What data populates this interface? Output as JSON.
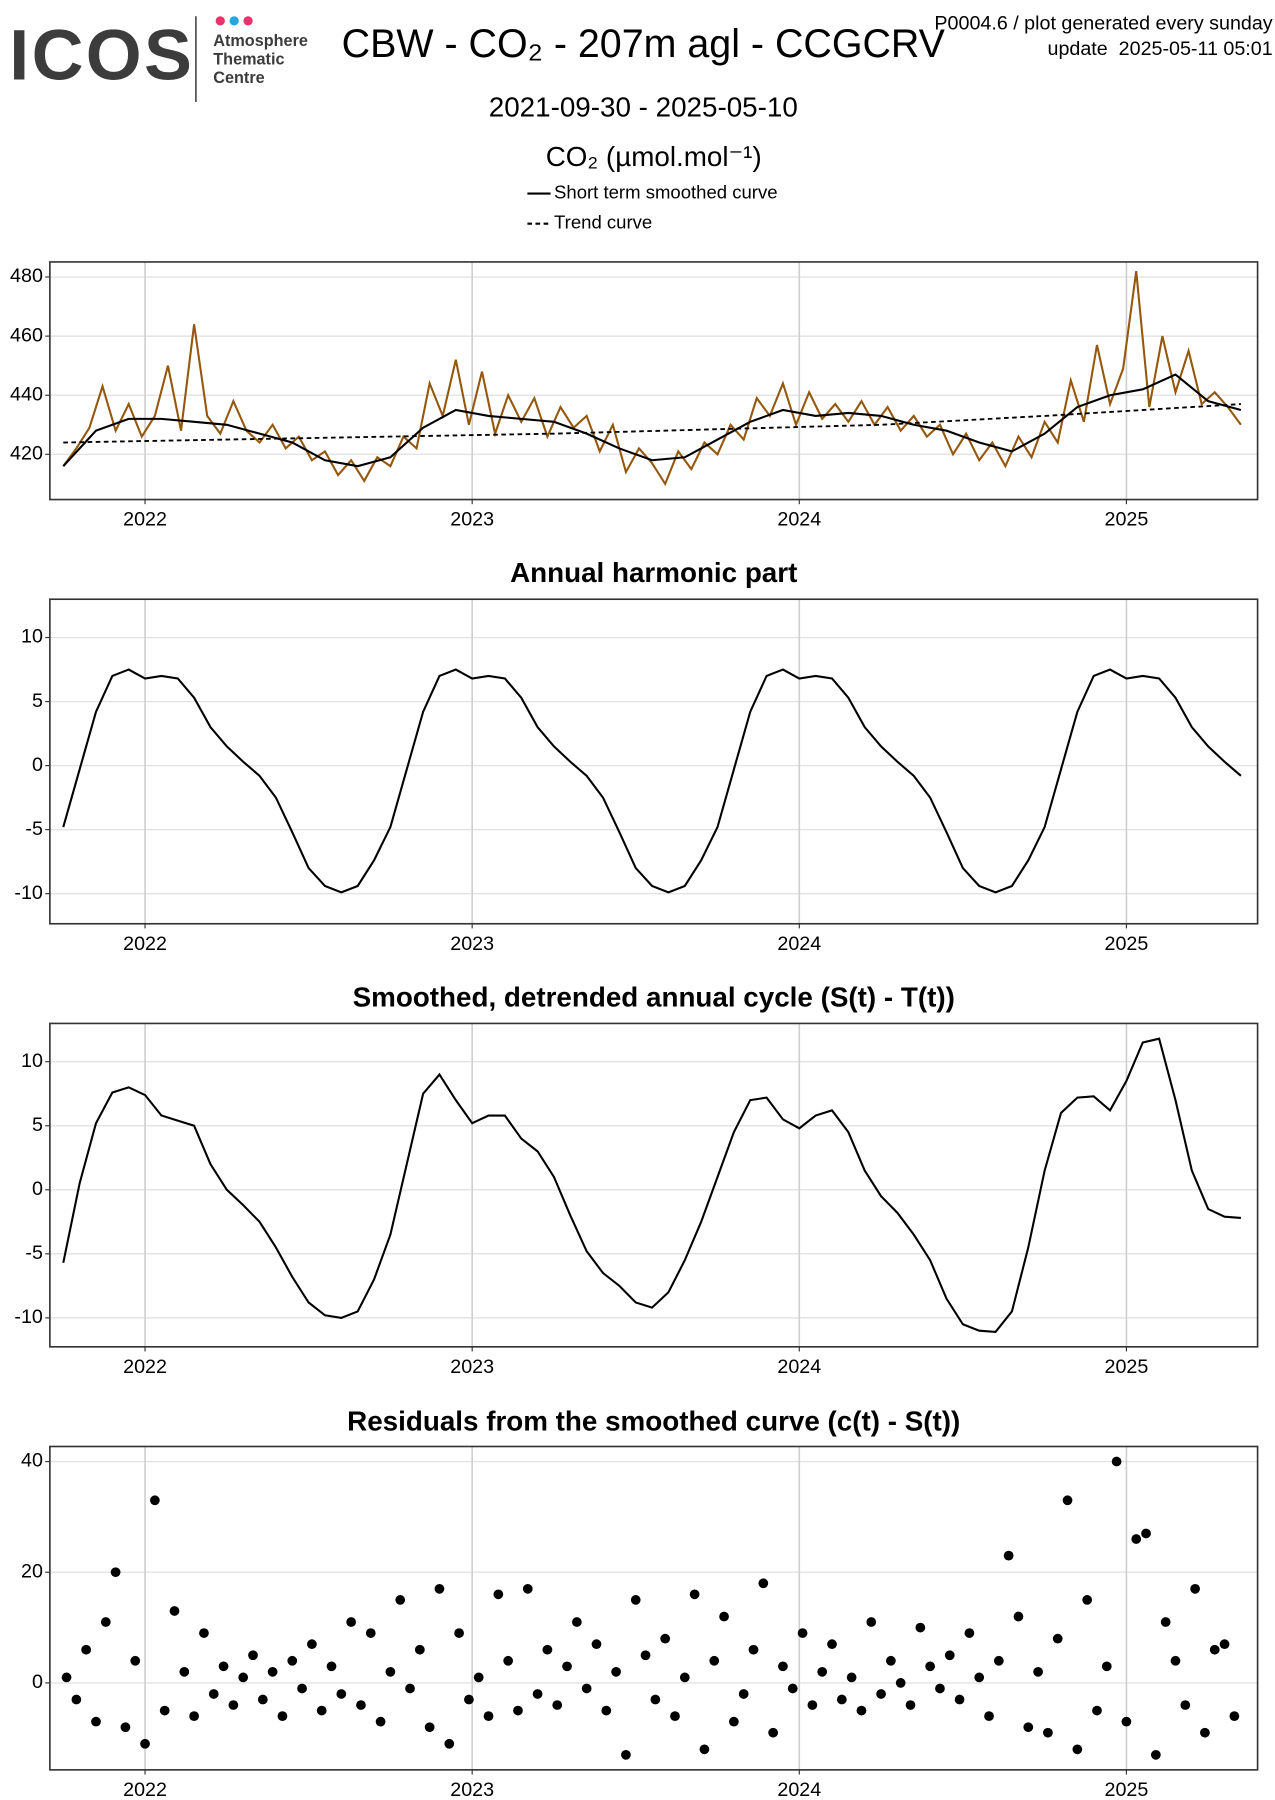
{
  "header": {
    "logo": "ICOS",
    "logo_subtitle": [
      "Atmosphere",
      "Thematic",
      "Centre"
    ],
    "title": "CBW - CO₂ - 207m agl - CCGCRV",
    "subtitle": "2021-09-30 - 2025-05-10",
    "note": "P0004.6 / plot generated every sunday",
    "update": "update  2025-05-11 05:01"
  },
  "chart_data": [
    {
      "type": "line",
      "title": "CO₂ (µmol.mol⁻¹)",
      "legend": "top",
      "grid": true,
      "xlim": [
        2021.709,
        2025.401
      ],
      "xticks": [
        2022,
        2023,
        2024,
        2025
      ],
      "ylim": [
        404.7,
        485.1
      ],
      "yticks": [
        420,
        440,
        460,
        480
      ],
      "series": [
        {
          "color": "#94570c",
          "x": [
            2021.75,
            2021.79,
            2021.83,
            2021.87,
            2021.91,
            2021.95,
            2021.99,
            2022.03,
            2022.07,
            2022.11,
            2022.15,
            2022.19,
            2022.23,
            2022.27,
            2022.31,
            2022.35,
            2022.39,
            2022.43,
            2022.47,
            2022.51,
            2022.55,
            2022.59,
            2022.63,
            2022.67,
            2022.71,
            2022.75,
            2022.79,
            2022.83,
            2022.87,
            2022.91,
            2022.95,
            2022.99,
            2023.03,
            2023.07,
            2023.11,
            2023.15,
            2023.19,
            2023.23,
            2023.27,
            2023.31,
            2023.35,
            2023.39,
            2023.43,
            2023.47,
            2023.51,
            2023.55,
            2023.59,
            2023.63,
            2023.67,
            2023.71,
            2023.75,
            2023.79,
            2023.83,
            2023.87,
            2023.91,
            2023.95,
            2023.99,
            2024.03,
            2024.07,
            2024.11,
            2024.15,
            2024.19,
            2024.23,
            2024.27,
            2024.31,
            2024.35,
            2024.39,
            2024.43,
            2024.47,
            2024.51,
            2024.55,
            2024.59,
            2024.63,
            2024.67,
            2024.71,
            2024.75,
            2024.79,
            2024.83,
            2024.87,
            2024.91,
            2024.95,
            2024.99,
            2025.03,
            2025.07,
            2025.11,
            2025.15,
            2025.19,
            2025.23,
            2025.27,
            2025.31,
            2025.35
          ],
          "values": [
            416,
            422,
            429,
            443,
            428,
            437,
            426,
            433,
            450,
            428,
            464,
            433,
            427,
            438,
            428,
            424,
            430,
            422,
            426,
            418,
            421,
            413,
            418,
            411,
            419,
            416,
            426,
            422,
            444,
            433,
            452,
            430,
            448,
            427,
            440,
            431,
            439,
            426,
            436,
            429,
            433,
            421,
            430,
            414,
            422,
            417,
            410,
            421,
            415,
            424,
            420,
            430,
            425,
            439,
            433,
            444,
            430,
            441,
            432,
            437,
            431,
            438,
            430,
            436,
            428,
            433,
            426,
            430,
            420,
            427,
            418,
            424,
            416,
            426,
            419,
            431,
            424,
            445,
            431,
            457,
            437,
            449,
            482,
            436,
            460,
            441,
            455,
            437,
            441,
            436,
            430
          ]
        },
        {
          "name": "Short term smoothed curve",
          "color": "#000000",
          "x": [
            2021.75,
            2021.85,
            2021.95,
            2022.05,
            2022.15,
            2022.25,
            2022.35,
            2022.45,
            2022.55,
            2022.65,
            2022.75,
            2022.85,
            2022.95,
            2023.05,
            2023.15,
            2023.25,
            2023.35,
            2023.45,
            2023.55,
            2023.65,
            2023.75,
            2023.85,
            2023.95,
            2024.05,
            2024.15,
            2024.25,
            2024.35,
            2024.45,
            2024.55,
            2024.65,
            2024.75,
            2024.85,
            2024.95,
            2025.05,
            2025.15,
            2025.25,
            2025.35
          ],
          "values": [
            416,
            428,
            432,
            432,
            431,
            430,
            427,
            424,
            418,
            416,
            419,
            429,
            435,
            433,
            432,
            431,
            427,
            422,
            418,
            419,
            425,
            431,
            435,
            433,
            434,
            433,
            430,
            428,
            424,
            421,
            427,
            436,
            440,
            442,
            447,
            438,
            435
          ]
        },
        {
          "name": "Trend curve",
          "color": "#000000",
          "dashed": true,
          "x": [
            2021.75,
            2022.25,
            2022.75,
            2023.25,
            2023.75,
            2024.25,
            2024.75,
            2025.35
          ],
          "values": [
            424,
            425,
            426,
            427,
            428.5,
            430,
            433,
            437
          ]
        }
      ]
    },
    {
      "type": "line",
      "title": "Annual harmonic part",
      "grid": true,
      "xlim": [
        2021.709,
        2025.401
      ],
      "xticks": [
        2022,
        2023,
        2024,
        2025
      ],
      "ylim": [
        -12.35,
        12.99
      ],
      "yticks": [
        -10,
        -5,
        0,
        5,
        10
      ],
      "series": [
        {
          "color": "#000000",
          "x": [
            2021.75,
            2021.8,
            2021.85,
            2021.9,
            2021.95,
            2022.0,
            2022.05,
            2022.1,
            2022.15,
            2022.2,
            2022.25,
            2022.3,
            2022.35,
            2022.4,
            2022.45,
            2022.5,
            2022.55,
            2022.6,
            2022.65,
            2022.7,
            2022.75,
            2022.8,
            2022.85,
            2022.9,
            2022.95,
            2023.0,
            2023.05,
            2023.1,
            2023.15,
            2023.2,
            2023.25,
            2023.3,
            2023.35,
            2023.4,
            2023.45,
            2023.5,
            2023.55,
            2023.6,
            2023.65,
            2023.7,
            2023.75,
            2023.8,
            2023.85,
            2023.9,
            2023.95,
            2024.0,
            2024.05,
            2024.1,
            2024.15,
            2024.2,
            2024.25,
            2024.3,
            2024.35,
            2024.4,
            2024.45,
            2024.5,
            2024.55,
            2024.6,
            2024.65,
            2024.7,
            2024.75,
            2024.8,
            2024.85,
            2024.9,
            2024.95,
            2025.0,
            2025.05,
            2025.1,
            2025.15,
            2025.2,
            2025.25,
            2025.3,
            2025.35
          ],
          "values": [
            -4.8,
            -0.3,
            4.2,
            7.0,
            7.5,
            6.8,
            7.0,
            6.8,
            5.3,
            3.0,
            1.5,
            0.3,
            -0.8,
            -2.5,
            -5.2,
            -8.0,
            -9.4,
            -9.9,
            -9.4,
            -7.4,
            -4.8,
            -0.3,
            4.2,
            7.0,
            7.5,
            6.8,
            7.0,
            6.8,
            5.3,
            3.0,
            1.5,
            0.3,
            -0.8,
            -2.5,
            -5.2,
            -8.0,
            -9.4,
            -9.9,
            -9.4,
            -7.4,
            -4.8,
            -0.3,
            4.2,
            7.0,
            7.5,
            6.8,
            7.0,
            6.8,
            5.3,
            3.0,
            1.5,
            0.3,
            -0.8,
            -2.5,
            -5.2,
            -8.0,
            -9.4,
            -9.9,
            -9.4,
            -7.4,
            -4.8,
            -0.3,
            4.2,
            7.0,
            7.5,
            6.8,
            7.0,
            6.8,
            5.3,
            3.0,
            1.5,
            0.3,
            -0.8
          ]
        }
      ]
    },
    {
      "type": "line",
      "title": "Smoothed, detrended annual cycle (S(t) - T(t))",
      "grid": true,
      "xlim": [
        2021.709,
        2025.401
      ],
      "xticks": [
        2022,
        2023,
        2024,
        2025
      ],
      "ylim": [
        -12.26,
        12.99
      ],
      "yticks": [
        -10,
        -5,
        0,
        5,
        10
      ],
      "series": [
        {
          "color": "#000000",
          "x": [
            2021.75,
            2021.8,
            2021.85,
            2021.9,
            2021.95,
            2022.0,
            2022.05,
            2022.1,
            2022.15,
            2022.2,
            2022.25,
            2022.3,
            2022.35,
            2022.4,
            2022.45,
            2022.5,
            2022.55,
            2022.6,
            2022.65,
            2022.7,
            2022.75,
            2022.8,
            2022.85,
            2022.9,
            2022.95,
            2023.0,
            2023.05,
            2023.1,
            2023.15,
            2023.2,
            2023.25,
            2023.3,
            2023.35,
            2023.4,
            2023.45,
            2023.5,
            2023.55,
            2023.6,
            2023.65,
            2023.7,
            2023.75,
            2023.8,
            2023.85,
            2023.9,
            2023.95,
            2024.0,
            2024.05,
            2024.1,
            2024.15,
            2024.2,
            2024.25,
            2024.3,
            2024.35,
            2024.4,
            2024.45,
            2024.5,
            2024.55,
            2024.6,
            2024.65,
            2024.7,
            2024.75,
            2024.8,
            2024.85,
            2024.9,
            2024.95,
            2025.0,
            2025.05,
            2025.1,
            2025.15,
            2025.2,
            2025.25,
            2025.3,
            2025.35
          ],
          "values": [
            -5.7,
            0.5,
            5.2,
            7.6,
            8.0,
            7.4,
            5.8,
            5.4,
            5.0,
            2.0,
            0.0,
            -1.2,
            -2.5,
            -4.5,
            -6.8,
            -8.8,
            -9.8,
            -10.0,
            -9.5,
            -7.0,
            -3.5,
            2.0,
            7.5,
            9.0,
            7.0,
            5.2,
            5.8,
            5.8,
            4.0,
            3.0,
            1.0,
            -2.0,
            -4.8,
            -6.5,
            -7.5,
            -8.8,
            -9.2,
            -8.0,
            -5.5,
            -2.5,
            1.0,
            4.5,
            7.0,
            7.2,
            5.5,
            4.8,
            5.8,
            6.2,
            4.5,
            1.5,
            -0.5,
            -1.8,
            -3.5,
            -5.5,
            -8.5,
            -10.5,
            -11.0,
            -11.1,
            -9.5,
            -4.5,
            1.5,
            6.0,
            7.2,
            7.3,
            6.2,
            8.5,
            11.5,
            11.8,
            7.0,
            1.5,
            -1.5,
            -2.1,
            -2.2
          ]
        }
      ]
    },
    {
      "type": "scatter",
      "title": "Residuals from the smoothed curve (c(t) - S(t))",
      "grid": true,
      "xlim": [
        2021.709,
        2025.401
      ],
      "xticks": [
        2022,
        2023,
        2024,
        2025
      ],
      "ylim": [
        -15.71,
        42.72
      ],
      "yticks": [
        0,
        20,
        40
      ],
      "series": [
        {
          "color": "#000000",
          "x": [
            2021.76,
            2021.79,
            2021.82,
            2021.85,
            2021.88,
            2021.91,
            2021.94,
            2021.97,
            2022.0,
            2022.03,
            2022.06,
            2022.09,
            2022.12,
            2022.15,
            2022.18,
            2022.21,
            2022.24,
            2022.27,
            2022.3,
            2022.33,
            2022.36,
            2022.39,
            2022.42,
            2022.45,
            2022.48,
            2022.51,
            2022.54,
            2022.57,
            2022.6,
            2022.63,
            2022.66,
            2022.69,
            2022.72,
            2022.75,
            2022.78,
            2022.81,
            2022.84,
            2022.87,
            2022.9,
            2022.93,
            2022.96,
            2022.99,
            2023.02,
            2023.05,
            2023.08,
            2023.11,
            2023.14,
            2023.17,
            2023.2,
            2023.23,
            2023.26,
            2023.29,
            2023.32,
            2023.35,
            2023.38,
            2023.41,
            2023.44,
            2023.47,
            2023.5,
            2023.53,
            2023.56,
            2023.59,
            2023.62,
            2023.65,
            2023.68,
            2023.71,
            2023.74,
            2023.77,
            2023.8,
            2023.83,
            2023.86,
            2023.89,
            2023.92,
            2023.95,
            2023.98,
            2024.01,
            2024.04,
            2024.07,
            2024.1,
            2024.13,
            2024.16,
            2024.19,
            2024.22,
            2024.25,
            2024.28,
            2024.31,
            2024.34,
            2024.37,
            2024.4,
            2024.43,
            2024.46,
            2024.49,
            2024.52,
            2024.55,
            2024.58,
            2024.61,
            2024.64,
            2024.67,
            2024.7,
            2024.73,
            2024.76,
            2024.79,
            2024.82,
            2024.85,
            2024.88,
            2024.91,
            2024.94,
            2024.97,
            2025.0,
            2025.03,
            2025.06,
            2025.09,
            2025.12,
            2025.15,
            2025.18,
            2025.21,
            2025.24,
            2025.27,
            2025.3,
            2025.33
          ],
          "values": [
            1,
            -3,
            6,
            -7,
            11,
            20,
            -8,
            4,
            -11,
            33,
            -5,
            13,
            2,
            -6,
            9,
            -2,
            3,
            -4,
            1,
            5,
            -3,
            2,
            -6,
            4,
            -1,
            7,
            -5,
            3,
            -2,
            11,
            -4,
            9,
            -7,
            2,
            15,
            -1,
            6,
            -8,
            17,
            -11,
            9,
            -3,
            1,
            -6,
            16,
            4,
            -5,
            17,
            -2,
            6,
            -4,
            3,
            11,
            -1,
            7,
            -5,
            2,
            -13,
            15,
            5,
            -3,
            8,
            -6,
            1,
            16,
            -12,
            4,
            12,
            -7,
            -2,
            6,
            18,
            -9,
            3,
            -1,
            9,
            -4,
            2,
            7,
            -3,
            1,
            -5,
            11,
            -2,
            4,
            0,
            -4,
            10,
            3,
            -1,
            5,
            -3,
            9,
            1,
            -6,
            4,
            23,
            12,
            -8,
            2,
            -9,
            8,
            33,
            -12,
            15,
            -5,
            3,
            40,
            -7,
            26,
            27,
            -13,
            11,
            4,
            -4,
            17,
            -9,
            6,
            7,
            -6
          ]
        }
      ]
    }
  ]
}
